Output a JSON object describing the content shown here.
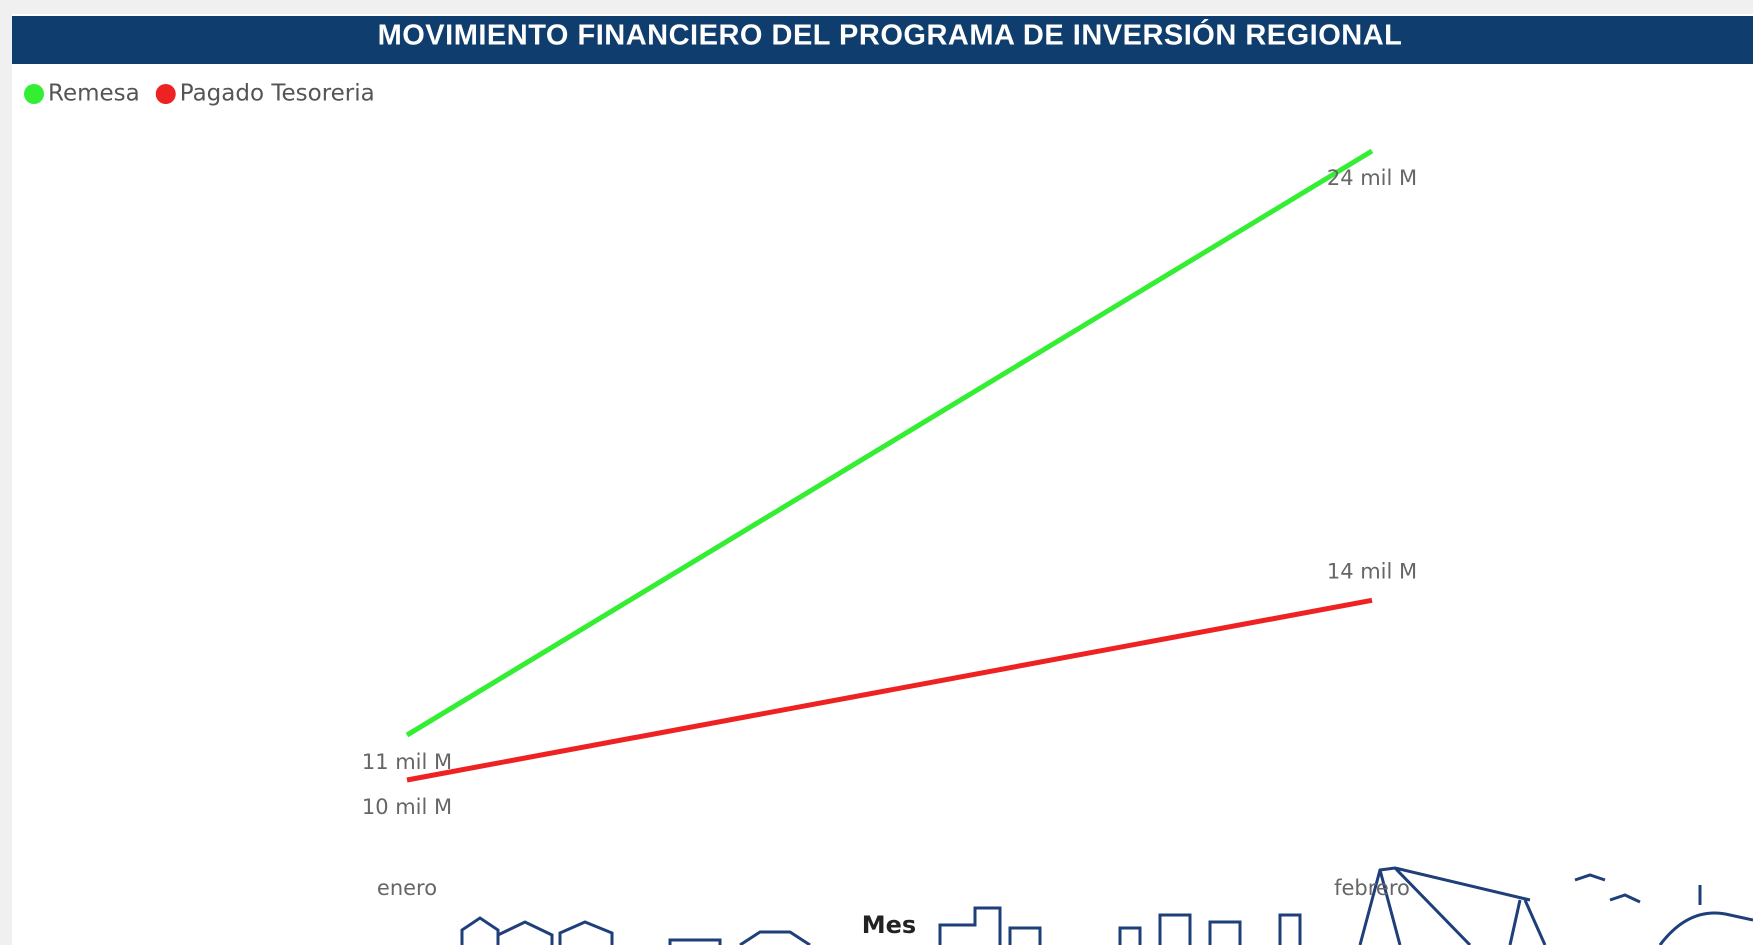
{
  "chart_data": {
    "type": "line",
    "title": "MOVIMIENTO FINANCIERO DEL PROGRAMA DE INVERSIÓN REGIONAL",
    "x_label": "Mes",
    "categories": [
      "enero",
      "febrero"
    ],
    "series": [
      {
        "name": "Remesa",
        "color": "#33ee33",
        "values": [
          11,
          24
        ],
        "value_labels": [
          "11 mil M",
          "24 mil M"
        ]
      },
      {
        "name": "Pagado Tesoreria",
        "color": "#ee2222",
        "values": [
          10,
          14
        ],
        "value_labels": [
          "10 mil M",
          "14 mil M"
        ]
      }
    ],
    "legend": "top-left"
  }
}
